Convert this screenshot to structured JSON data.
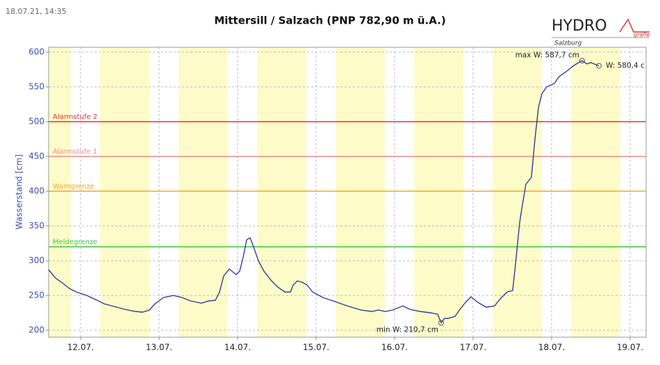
{
  "timestamp": "18.07.21, 14:35",
  "logo": {
    "text": "HYDRO",
    "sub": "Salzburg",
    "tag": "grafie"
  },
  "chart_data": {
    "type": "line",
    "title": "Mittersill / Salzach (PNP 782,90 m ü.A.)",
    "ylabel": "Wasserstand [cm]",
    "color": "#2f3d9e",
    "x": [
      11.593,
      11.681,
      11.77,
      11.858,
      11.947,
      12.08,
      12.212,
      12.301,
      12.434,
      12.566,
      12.699,
      12.788,
      12.876,
      12.938,
      13.053,
      13.186,
      13.292,
      13.407,
      13.54,
      13.628,
      13.717,
      13.77,
      13.823,
      13.894,
      13.982,
      14.027,
      14.071,
      14.115,
      14.159,
      14.204,
      14.265,
      14.336,
      14.425,
      14.513,
      14.602,
      14.673,
      14.708,
      14.761,
      14.823,
      14.885,
      14.956,
      15.088,
      15.221,
      15.398,
      15.575,
      15.708,
      15.796,
      15.885,
      15.973,
      16.062,
      16.106,
      16.195,
      16.327,
      16.46,
      16.549,
      16.593,
      16.637,
      16.681,
      16.77,
      16.832,
      16.903,
      16.973,
      17.062,
      17.168,
      17.274,
      17.345,
      17.434,
      17.504,
      17.54,
      17.593,
      17.628,
      17.673,
      17.743,
      17.788,
      17.832,
      17.876,
      17.938,
      18.035,
      18.097,
      18.186,
      18.274,
      18.345,
      18.389,
      18.451,
      18.496,
      18.602
    ],
    "values": [
      287,
      275,
      268,
      260,
      255,
      250,
      243,
      238,
      234,
      230,
      227,
      226,
      229,
      237,
      247,
      250,
      247,
      242,
      239,
      242,
      243,
      255,
      278,
      288,
      280,
      285,
      305,
      330,
      333,
      320,
      300,
      285,
      272,
      262,
      255,
      255,
      265,
      271,
      269,
      265,
      255,
      247,
      242,
      235,
      229,
      227,
      229,
      227,
      229,
      233,
      235,
      230,
      227,
      225,
      223,
      210.7,
      217,
      217,
      220,
      230,
      240,
      248,
      240,
      233,
      235,
      245,
      255,
      257,
      295,
      355,
      380,
      410,
      420,
      475,
      520,
      540,
      550,
      555,
      565,
      572,
      580,
      585,
      587.7,
      583,
      585,
      580.4
    ],
    "xlim": [
      11.593,
      19.204
    ],
    "ylim": [
      190,
      607
    ],
    "xticks": [
      {
        "value": 12,
        "label": "12.07."
      },
      {
        "value": 13,
        "label": "13.07."
      },
      {
        "value": 14,
        "label": "14.07."
      },
      {
        "value": 15,
        "label": "15.07."
      },
      {
        "value": 16,
        "label": "16.07."
      },
      {
        "value": 17,
        "label": "17.07."
      },
      {
        "value": 18,
        "label": "18.07."
      },
      {
        "value": 19,
        "label": "19.07."
      }
    ],
    "yticks": [
      200,
      250,
      300,
      350,
      400,
      450,
      500,
      550,
      600
    ],
    "grid": true,
    "shading": [
      [
        11.25,
        11.875
      ],
      [
        12.25,
        12.875
      ],
      [
        13.25,
        13.875
      ],
      [
        14.25,
        14.875
      ],
      [
        15.25,
        15.875
      ],
      [
        16.25,
        16.875
      ],
      [
        17.25,
        17.875
      ],
      [
        18.25,
        18.875
      ]
    ],
    "shading_color": "#fdfbc8",
    "thresholds": [
      {
        "name": "Alarmstufe 2",
        "value": 500,
        "color": "#e8302e"
      },
      {
        "name": "Alarmstufe 1",
        "value": 450,
        "color": "#f08a8a"
      },
      {
        "name": "Warngrenze",
        "value": 400,
        "color": "#f5a623"
      },
      {
        "name": "Meldegrenze",
        "value": 320,
        "color": "#3cc43c"
      }
    ],
    "annotations": [
      {
        "text": "max W: 587,7 cm",
        "x": 18.389,
        "y": 587.7
      },
      {
        "text": "min W: 210,7 cm",
        "x": 16.593,
        "y": 210.7
      },
      {
        "text": "W: 580,4 c",
        "x": 18.602,
        "y": 580.4
      }
    ]
  }
}
